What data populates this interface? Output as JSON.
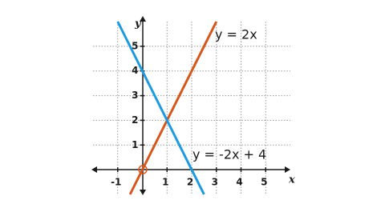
{
  "chart_data": {
    "type": "line",
    "x_label": "x",
    "y_label": "y",
    "series": [
      {
        "name": "y = 2x",
        "color": "#d4581e",
        "x": [
          -0.5,
          3
        ],
        "values": [
          -1,
          6
        ]
      },
      {
        "name": "y = -2x + 4",
        "color": "#1d9ae0",
        "x": [
          -1,
          2.5
        ],
        "values": [
          6,
          -1
        ]
      }
    ],
    "xlim": [
      -2,
      6
    ],
    "ylim": [
      -1,
      6
    ],
    "xticks": [
      -1,
      1,
      2,
      3,
      4,
      5
    ],
    "yticks": [
      1,
      2,
      3,
      4,
      5
    ],
    "grid": true
  }
}
